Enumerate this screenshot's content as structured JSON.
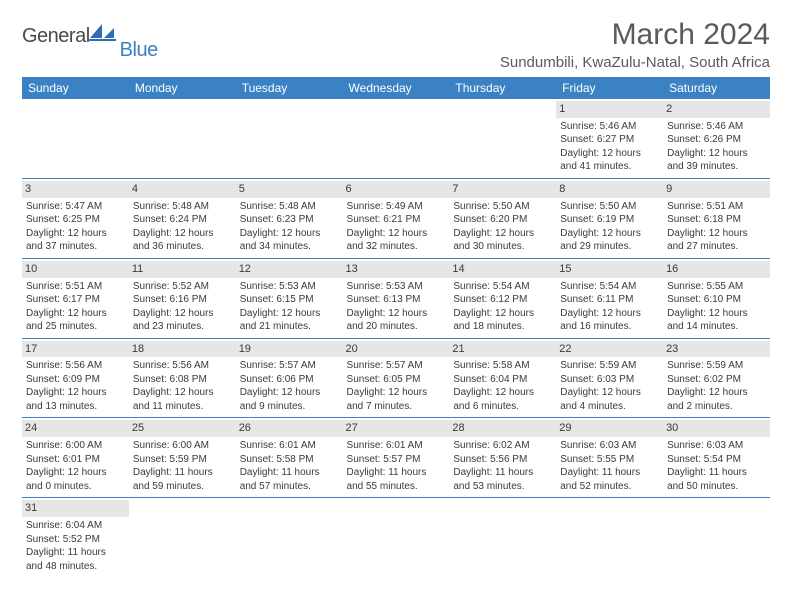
{
  "logo": {
    "dark": "General",
    "blue": "Blue"
  },
  "title": "March 2024",
  "location": "Sundumbili, KwaZulu-Natal, South Africa",
  "weekdays": [
    "Sunday",
    "Monday",
    "Tuesday",
    "Wednesday",
    "Thursday",
    "Friday",
    "Saturday"
  ],
  "colors": {
    "header_bg": "#3b82c4",
    "header_fg": "#ffffff",
    "daynum_bg": "#e6e6e6",
    "text": "#3a3a3a",
    "rule": "#3b82c4"
  },
  "typography": {
    "title_fontsize": 30,
    "location_fontsize": 15,
    "weekday_fontsize": 12,
    "cell_fontsize": 10,
    "daynum_fontsize": 11
  },
  "grid": {
    "cols": 7,
    "rows": 6,
    "first_day_col": 5,
    "days_in_month": 31
  },
  "days": [
    {
      "n": 1,
      "sunrise": "5:46 AM",
      "sunset": "6:27 PM",
      "day_h": 12,
      "day_m": 41
    },
    {
      "n": 2,
      "sunrise": "5:46 AM",
      "sunset": "6:26 PM",
      "day_h": 12,
      "day_m": 39
    },
    {
      "n": 3,
      "sunrise": "5:47 AM",
      "sunset": "6:25 PM",
      "day_h": 12,
      "day_m": 37
    },
    {
      "n": 4,
      "sunrise": "5:48 AM",
      "sunset": "6:24 PM",
      "day_h": 12,
      "day_m": 36
    },
    {
      "n": 5,
      "sunrise": "5:48 AM",
      "sunset": "6:23 PM",
      "day_h": 12,
      "day_m": 34
    },
    {
      "n": 6,
      "sunrise": "5:49 AM",
      "sunset": "6:21 PM",
      "day_h": 12,
      "day_m": 32
    },
    {
      "n": 7,
      "sunrise": "5:50 AM",
      "sunset": "6:20 PM",
      "day_h": 12,
      "day_m": 30
    },
    {
      "n": 8,
      "sunrise": "5:50 AM",
      "sunset": "6:19 PM",
      "day_h": 12,
      "day_m": 29
    },
    {
      "n": 9,
      "sunrise": "5:51 AM",
      "sunset": "6:18 PM",
      "day_h": 12,
      "day_m": 27
    },
    {
      "n": 10,
      "sunrise": "5:51 AM",
      "sunset": "6:17 PM",
      "day_h": 12,
      "day_m": 25
    },
    {
      "n": 11,
      "sunrise": "5:52 AM",
      "sunset": "6:16 PM",
      "day_h": 12,
      "day_m": 23
    },
    {
      "n": 12,
      "sunrise": "5:53 AM",
      "sunset": "6:15 PM",
      "day_h": 12,
      "day_m": 21
    },
    {
      "n": 13,
      "sunrise": "5:53 AM",
      "sunset": "6:13 PM",
      "day_h": 12,
      "day_m": 20
    },
    {
      "n": 14,
      "sunrise": "5:54 AM",
      "sunset": "6:12 PM",
      "day_h": 12,
      "day_m": 18
    },
    {
      "n": 15,
      "sunrise": "5:54 AM",
      "sunset": "6:11 PM",
      "day_h": 12,
      "day_m": 16
    },
    {
      "n": 16,
      "sunrise": "5:55 AM",
      "sunset": "6:10 PM",
      "day_h": 12,
      "day_m": 14
    },
    {
      "n": 17,
      "sunrise": "5:56 AM",
      "sunset": "6:09 PM",
      "day_h": 12,
      "day_m": 13
    },
    {
      "n": 18,
      "sunrise": "5:56 AM",
      "sunset": "6:08 PM",
      "day_h": 12,
      "day_m": 11
    },
    {
      "n": 19,
      "sunrise": "5:57 AM",
      "sunset": "6:06 PM",
      "day_h": 12,
      "day_m": 9
    },
    {
      "n": 20,
      "sunrise": "5:57 AM",
      "sunset": "6:05 PM",
      "day_h": 12,
      "day_m": 7
    },
    {
      "n": 21,
      "sunrise": "5:58 AM",
      "sunset": "6:04 PM",
      "day_h": 12,
      "day_m": 6
    },
    {
      "n": 22,
      "sunrise": "5:59 AM",
      "sunset": "6:03 PM",
      "day_h": 12,
      "day_m": 4
    },
    {
      "n": 23,
      "sunrise": "5:59 AM",
      "sunset": "6:02 PM",
      "day_h": 12,
      "day_m": 2
    },
    {
      "n": 24,
      "sunrise": "6:00 AM",
      "sunset": "6:01 PM",
      "day_h": 12,
      "day_m": 0
    },
    {
      "n": 25,
      "sunrise": "6:00 AM",
      "sunset": "5:59 PM",
      "day_h": 11,
      "day_m": 59
    },
    {
      "n": 26,
      "sunrise": "6:01 AM",
      "sunset": "5:58 PM",
      "day_h": 11,
      "day_m": 57
    },
    {
      "n": 27,
      "sunrise": "6:01 AM",
      "sunset": "5:57 PM",
      "day_h": 11,
      "day_m": 55
    },
    {
      "n": 28,
      "sunrise": "6:02 AM",
      "sunset": "5:56 PM",
      "day_h": 11,
      "day_m": 53
    },
    {
      "n": 29,
      "sunrise": "6:03 AM",
      "sunset": "5:55 PM",
      "day_h": 11,
      "day_m": 52
    },
    {
      "n": 30,
      "sunrise": "6:03 AM",
      "sunset": "5:54 PM",
      "day_h": 11,
      "day_m": 50
    },
    {
      "n": 31,
      "sunrise": "6:04 AM",
      "sunset": "5:52 PM",
      "day_h": 11,
      "day_m": 48
    }
  ],
  "labels": {
    "sunrise": "Sunrise:",
    "sunset": "Sunset:",
    "daylight": "Daylight:",
    "hours_word": "hours",
    "and_word": "and",
    "minutes_word": "minutes."
  }
}
